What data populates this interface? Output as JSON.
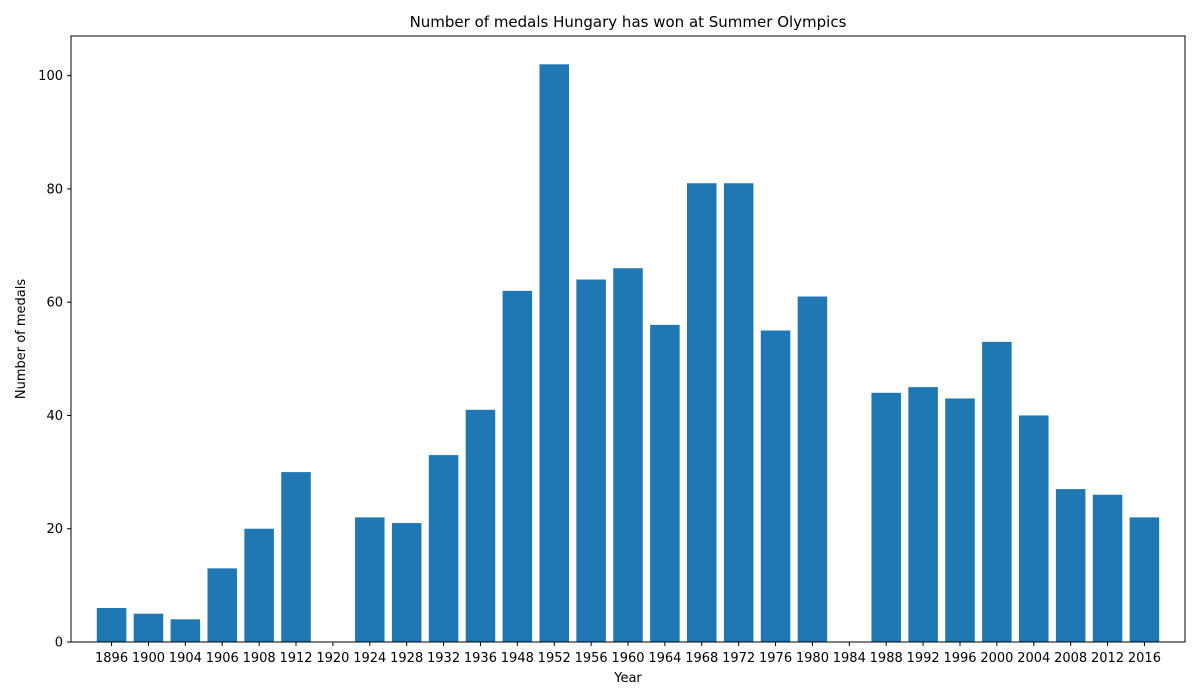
{
  "chart_data": {
    "type": "bar",
    "title": "Number of medals Hungary has won at Summer Olympics",
    "xlabel": "Year",
    "ylabel": "Number of medals",
    "categories": [
      "1896",
      "1900",
      "1904",
      "1906",
      "1908",
      "1912",
      "1920",
      "1924",
      "1928",
      "1932",
      "1936",
      "1948",
      "1952",
      "1956",
      "1960",
      "1964",
      "1968",
      "1972",
      "1976",
      "1980",
      "1984",
      "1988",
      "1992",
      "1996",
      "2000",
      "2004",
      "2008",
      "2012",
      "2016"
    ],
    "values": [
      6,
      5,
      4,
      13,
      20,
      30,
      0,
      22,
      21,
      33,
      41,
      62,
      102,
      64,
      66,
      56,
      81,
      81,
      55,
      61,
      0,
      44,
      45,
      43,
      53,
      40,
      27,
      26,
      22
    ],
    "ylim": [
      0,
      107
    ],
    "yticks": [
      0,
      20,
      40,
      60,
      80,
      100
    ],
    "grid": false,
    "colors": {
      "bar": "#1f77b4",
      "axis": "#000000"
    }
  }
}
